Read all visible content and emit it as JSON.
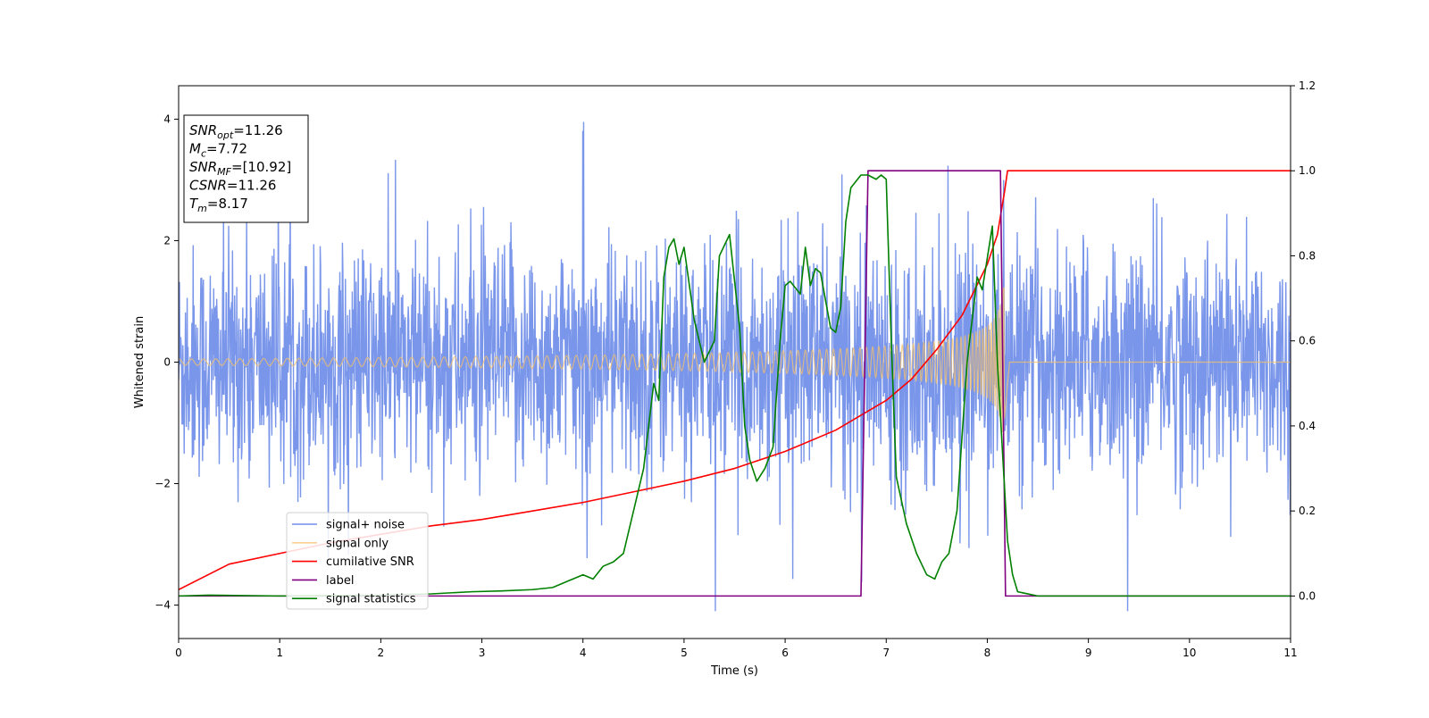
{
  "chart_data": {
    "type": "line",
    "xlabel": "Time (s)",
    "ylabel": "Whitened strain",
    "xlim": [
      0,
      11
    ],
    "ylim_left": [
      -4.55,
      4.55
    ],
    "ylim_right": [
      -0.1,
      1.2
    ],
    "x_ticks": [
      0,
      1,
      2,
      3,
      4,
      5,
      6,
      7,
      8,
      9,
      10,
      11
    ],
    "y_ticks_left": [
      -4,
      -2,
      0,
      2,
      4
    ],
    "y_ticks_right": [
      "0.0",
      "0.2",
      "0.4",
      "0.6",
      "0.8",
      "1.0",
      "1.2"
    ],
    "grid": false,
    "legend_placement": "lower-left",
    "info_box": {
      "placement": "top-left",
      "lines": [
        {
          "sym": "SNR",
          "sub": "opt",
          "value": "=11.26"
        },
        {
          "sym": "M",
          "sub": "c",
          "value": "=7.72"
        },
        {
          "sym": "SNR",
          "sub": "MF",
          "value": "=[10.92]"
        },
        {
          "sym": "CSNR",
          "sub": "",
          "value": "=11.26"
        },
        {
          "sym": "T",
          "sub": "m",
          "value": "=8.17"
        }
      ]
    },
    "series": [
      {
        "name": "signal+ noise",
        "axis": "left",
        "color": "#4169e1",
        "description_type": "noise",
        "x_range": [
          0,
          11
        ],
        "std": 1.0,
        "peak_range": [
          -4.1,
          4.1
        ]
      },
      {
        "name": "signal only",
        "axis": "left",
        "color": "#f5c06b",
        "description_type": "chirp",
        "start_amplitude": 0.05,
        "end_amplitude": 1.25,
        "merger_time": 8.17
      },
      {
        "name": "cumilative SNR",
        "axis": "right",
        "color": "#ff0000",
        "x": [
          0,
          0.5,
          1,
          1.5,
          2,
          2.5,
          3,
          3.5,
          4,
          4.5,
          5,
          5.5,
          6,
          6.5,
          7,
          7.25,
          7.5,
          7.75,
          8,
          8.1,
          8.17,
          8.2,
          11
        ],
        "y": [
          0.015,
          0.075,
          0.1,
          0.125,
          0.145,
          0.165,
          0.18,
          0.2,
          0.22,
          0.245,
          0.27,
          0.3,
          0.34,
          0.39,
          0.46,
          0.51,
          0.58,
          0.66,
          0.78,
          0.85,
          0.95,
          1.0,
          1.0
        ]
      },
      {
        "name": "label",
        "axis": "right",
        "color": "#800080",
        "x": [
          0,
          6.75,
          6.82,
          8.13,
          8.18,
          11
        ],
        "y": [
          0,
          0,
          1,
          1,
          0,
          0
        ]
      },
      {
        "name": "signal statistics",
        "axis": "right",
        "color": "#008000",
        "x": [
          0,
          0.3,
          1,
          2,
          2.5,
          2.9,
          3.2,
          3.5,
          3.7,
          3.9,
          4.0,
          4.1,
          4.2,
          4.3,
          4.4,
          4.5,
          4.6,
          4.7,
          4.75,
          4.8,
          4.85,
          4.9,
          4.95,
          5.0,
          5.1,
          5.2,
          5.3,
          5.35,
          5.45,
          5.55,
          5.6,
          5.65,
          5.72,
          5.8,
          5.88,
          5.95,
          6.0,
          6.05,
          6.15,
          6.2,
          6.25,
          6.3,
          6.35,
          6.45,
          6.5,
          6.55,
          6.6,
          6.65,
          6.75,
          6.82,
          6.9,
          6.95,
          7.0,
          7.05,
          7.1,
          7.2,
          7.3,
          7.4,
          7.48,
          7.55,
          7.62,
          7.7,
          7.8,
          7.9,
          7.95,
          8.05,
          8.1,
          8.2,
          8.25,
          8.3,
          8.5,
          11
        ],
        "y": [
          0.0,
          0.002,
          0.0,
          0.002,
          0.005,
          0.01,
          0.012,
          0.015,
          0.02,
          0.04,
          0.05,
          0.04,
          0.07,
          0.08,
          0.1,
          0.2,
          0.3,
          0.5,
          0.46,
          0.75,
          0.82,
          0.84,
          0.78,
          0.82,
          0.65,
          0.55,
          0.6,
          0.8,
          0.85,
          0.63,
          0.4,
          0.32,
          0.27,
          0.3,
          0.35,
          0.6,
          0.73,
          0.74,
          0.71,
          0.82,
          0.73,
          0.77,
          0.76,
          0.63,
          0.62,
          0.68,
          0.88,
          0.96,
          0.99,
          0.99,
          0.98,
          0.99,
          0.98,
          0.6,
          0.28,
          0.17,
          0.1,
          0.05,
          0.04,
          0.08,
          0.1,
          0.2,
          0.55,
          0.75,
          0.72,
          0.87,
          0.55,
          0.13,
          0.05,
          0.01,
          0.0,
          0.0
        ]
      }
    ]
  }
}
